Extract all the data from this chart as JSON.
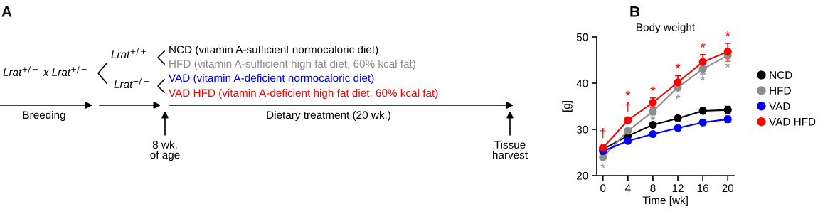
{
  "chart_data": [
    {
      "type": "other",
      "annotations": [
        "A",
        "Lrat$^{+/−}$ x Lrat$^{+/−}$",
        "Lrat$^{+/+}$",
        "Lrat$^{−/−}$",
        "NCD (vitamin A-sufficient normocaloric diet)",
        "HFD (vitamin A-sufficient high fat diet, 60% kcal fat)",
        "VAD (vitamin A-deficient normocaloric diet)",
        "VAD HFD (vitamin A-deficient high fat diet, 60% kcal fat)",
        "Breeding",
        "Dietary treatment (20 wk.)",
        "8 wk.\nof age",
        "Tissue\nharvest"
      ],
      "colors": [
        "#000000",
        "#000000",
        "#000000",
        "#000000",
        "#000000",
        "#8c8c8c",
        "#0000ff",
        "#ff0000",
        "#000000",
        "#000000",
        "#000000",
        "#000000"
      ]
    },
    {
      "type": "line",
      "title": "Body weight",
      "xlabel": "Time [wk]",
      "ylabel": "[g]",
      "x": [
        0,
        4,
        8,
        12,
        16,
        20
      ],
      "xlim": [
        -1,
        21
      ],
      "xticks": [
        0,
        4,
        8,
        12,
        16,
        20
      ],
      "ylim": [
        20,
        50
      ],
      "yticks": [
        20,
        30,
        40,
        50
      ],
      "grid": false,
      "legend": "right",
      "marker": "circle",
      "line_style": "solid",
      "series": [
        {
          "name": "NCD",
          "color": "#000000",
          "values": [
            25.7,
            28.6,
            31.0,
            32.4,
            34.0,
            34.2
          ],
          "errors": [
            null,
            0.4,
            0.4,
            0.5,
            0.6,
            0.8
          ]
        },
        {
          "name": "HFD",
          "color": "#8c8c8c",
          "values": [
            24.0,
            29.7,
            33.9,
            39.1,
            43.1,
            46.0
          ],
          "errors": [
            0.5,
            0.5,
            0.8,
            1.0,
            1.1,
            1.3
          ]
        },
        {
          "name": "VAD",
          "color": "#0000ff",
          "values": [
            25.3,
            27.5,
            29.0,
            30.3,
            31.5,
            32.2
          ],
          "errors": [
            null,
            0.3,
            0.3,
            0.3,
            0.4,
            0.7
          ]
        },
        {
          "name": "VAD HFD",
          "color": "#ff0000",
          "values": [
            26.0,
            32.0,
            35.8,
            40.2,
            44.6,
            46.8
          ],
          "errors": [
            0.5,
            0.5,
            1.0,
            1.4,
            1.6,
            1.8
          ]
        }
      ],
      "annotations": [
        "B",
        {
          "text": "†",
          "x": 0,
          "y": 26.0
        },
        {
          "text": "†",
          "x": 4,
          "y": 32.0
        },
        {
          "text": "*",
          "x": 4,
          "y": 32.0
        },
        {
          "text": "*",
          "x": 8,
          "y": 35.8
        },
        {
          "text": "*",
          "x": 12,
          "y": 40.2
        },
        {
          "text": "*",
          "x": 16,
          "y": 44.6
        },
        {
          "text": "*",
          "x": 20,
          "y": 46.8
        },
        {
          "text": "*",
          "x": 0,
          "y": 24.0
        },
        {
          "text": "*",
          "x": 8,
          "y": 33.9
        },
        {
          "text": "*",
          "x": 12,
          "y": 39.1
        },
        {
          "text": "*",
          "x": 16,
          "y": 43.1
        },
        {
          "text": "*",
          "x": 20,
          "y": 46.0
        }
      ],
      "colors": [
        "#000000",
        "#ff0000",
        "#ff0000",
        "#ff0000",
        "#ff0000",
        "#ff0000",
        "#ff0000",
        "#ff0000",
        "#8c8c8c",
        "#8c8c8c",
        "#8c8c8c",
        "#8c8c8c",
        "#8c8c8c"
      ]
    }
  ]
}
